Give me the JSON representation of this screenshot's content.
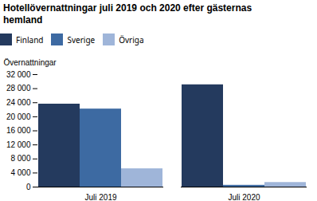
{
  "chart_data": {
    "type": "bar",
    "title": "Hotellövernattningar juli 2019 och 2020 efter gästernas hemland",
    "y_label": "Övernattningar",
    "categories": [
      "Juli 2019",
      "Juli 2020"
    ],
    "series": [
      {
        "name": "Finland",
        "color": "#243a5e",
        "values": [
          23600,
          29100
        ]
      },
      {
        "name": "Sverige",
        "color": "#3d6aa2",
        "values": [
          22200,
          500
        ]
      },
      {
        "name": "Övriga",
        "color": "#9fb5d9",
        "values": [
          5200,
          1300
        ]
      }
    ],
    "ylim": [
      0,
      32000
    ],
    "yticks": [
      0,
      {
        "value": 4000,
        "label": "4 000"
      },
      {
        "value": 8000,
        "label": "8 000"
      },
      {
        "value": 12000,
        "label": "12 000"
      },
      {
        "value": 16000,
        "label": "16 000"
      },
      {
        "value": 20000,
        "label": "20 000"
      },
      {
        "value": 24000,
        "label": "24 000"
      },
      {
        "value": 28000,
        "label": "28 000"
      },
      {
        "value": 32000,
        "label": "32 000"
      }
    ],
    "grid": false,
    "legend": "top"
  }
}
